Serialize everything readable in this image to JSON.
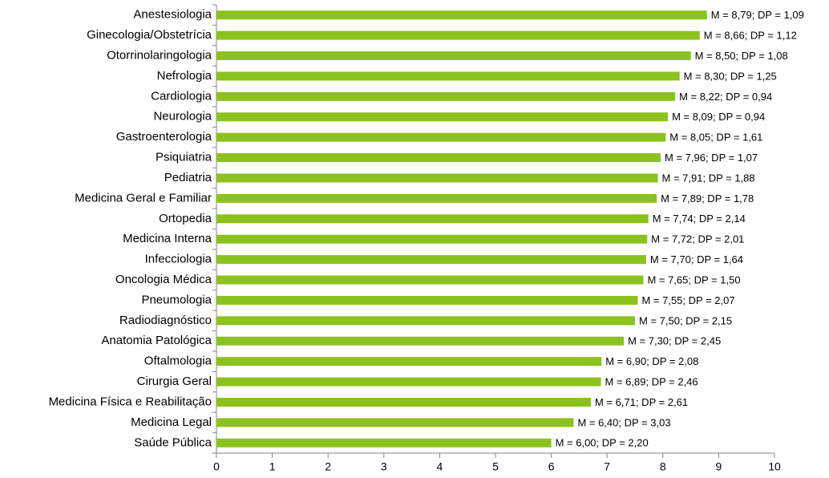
{
  "chart_data": {
    "type": "bar",
    "orientation": "horizontal",
    "categories": [
      "Anestesiologia",
      "Ginecologia/Obstetrícia",
      "Otorrinolaringologia",
      "Nefrologia",
      "Cardiologia",
      "Neurologia",
      "Gastroenterologia",
      "Psiquiatria",
      "Pediatria",
      "Medicina Geral e Familiar",
      "Ortopedia",
      "Medicina Interna",
      "Infecciologia",
      "Oncologia Médica",
      "Pneumologia",
      "Radiodiagnóstico",
      "Anatomia Patológica",
      "Oftalmologia",
      "Cirurgia Geral",
      "Medicina Física e Reabilitação",
      "Medicina Legal",
      "Saúde Pública"
    ],
    "values": [
      8.79,
      8.66,
      8.5,
      8.3,
      8.22,
      8.09,
      8.05,
      7.96,
      7.91,
      7.89,
      7.74,
      7.72,
      7.7,
      7.65,
      7.55,
      7.5,
      7.3,
      6.9,
      6.89,
      6.71,
      6.4,
      6.0
    ],
    "value_labels": [
      "M = 8,79; DP = 1,09",
      "M = 8,66; DP = 1,12",
      "M = 8,50; DP = 1,08",
      "M = 8,30; DP = 1,25",
      "M = 8,22; DP = 0,94",
      "M = 8,09; DP = 0,94",
      "M = 8,05; DP = 1,61",
      "M = 7,96; DP = 1,07",
      "M = 7,91; DP = 1,88",
      "M = 7,89; DP = 1,78",
      "M = 7,74; DP = 2,14",
      "M = 7,72; DP = 2,01",
      "M = 7,70; DP = 1,64",
      "M = 7,65; DP = 1,50",
      "M = 7,55; DP = 2,07",
      "M = 7,50; DP = 2,15",
      "M = 7,30; DP = 2,45",
      "M = 6,90; DP = 2,08",
      "M = 6,89; DP = 2,46",
      "M = 6,71; DP = 2,61",
      "M = 6,40; DP = 3,03",
      "M = 6,00; DP = 2,20"
    ],
    "color": "#8cc21e",
    "xlim": [
      0,
      10
    ],
    "xticks": [
      0,
      1,
      2,
      3,
      4,
      5,
      6,
      7,
      8,
      9,
      10
    ]
  }
}
